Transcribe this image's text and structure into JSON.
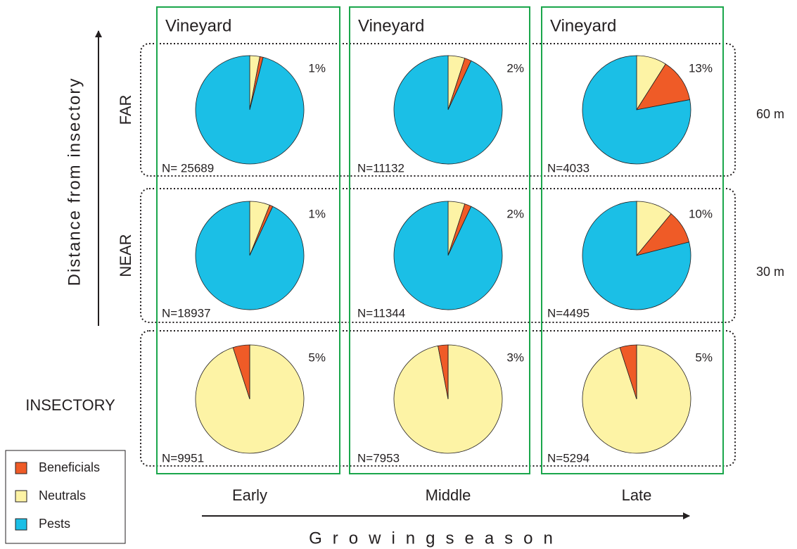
{
  "chart_data": [
    {
      "type": "pie",
      "categories": [
        "Neutrals",
        "Beneficials",
        "Pests"
      ],
      "colors": [
        "#fdf3a5",
        "#ef5b27",
        "#1bbfe6"
      ],
      "values": [
        3,
        1,
        96
      ],
      "value_labels": [
        null,
        "1%",
        null
      ],
      "n_label": "N= 25689"
    },
    {
      "type": "pie",
      "categories": [
        "Neutrals",
        "Beneficials",
        "Pests"
      ],
      "colors": [
        "#fdf3a5",
        "#ef5b27",
        "#1bbfe6"
      ],
      "values": [
        5,
        2,
        93
      ],
      "value_labels": [
        null,
        "2%",
        null
      ],
      "n_label": "N=11132"
    },
    {
      "type": "pie",
      "categories": [
        "Neutrals",
        "Beneficials",
        "Pests"
      ],
      "colors": [
        "#fdf3a5",
        "#ef5b27",
        "#1bbfe6"
      ],
      "values": [
        9,
        13,
        78
      ],
      "value_labels": [
        null,
        "13%",
        null
      ],
      "n_label": "N=4033"
    },
    {
      "type": "pie",
      "categories": [
        "Neutrals",
        "Beneficials",
        "Pests"
      ],
      "colors": [
        "#fdf3a5",
        "#ef5b27",
        "#1bbfe6"
      ],
      "values": [
        6,
        1,
        93
      ],
      "value_labels": [
        null,
        "1%",
        null
      ],
      "n_label": "N=18937"
    },
    {
      "type": "pie",
      "categories": [
        "Neutrals",
        "Beneficials",
        "Pests"
      ],
      "colors": [
        "#fdf3a5",
        "#ef5b27",
        "#1bbfe6"
      ],
      "values": [
        5,
        2,
        93
      ],
      "value_labels": [
        null,
        "2%",
        null
      ],
      "n_label": "N=11344"
    },
    {
      "type": "pie",
      "categories": [
        "Neutrals",
        "Beneficials",
        "Pests"
      ],
      "colors": [
        "#fdf3a5",
        "#ef5b27",
        "#1bbfe6"
      ],
      "values": [
        11,
        10,
        79
      ],
      "value_labels": [
        null,
        "10%",
        null
      ],
      "n_label": "N=4495"
    },
    {
      "type": "pie",
      "categories": [
        "Neutrals",
        "Beneficials",
        "Pests"
      ],
      "colors": [
        "#fdf3a5",
        "#ef5b27",
        "#1bbfe6"
      ],
      "values": [
        95,
        5,
        0
      ],
      "value_labels": [
        null,
        "5%",
        null
      ],
      "n_label": "N=9951"
    },
    {
      "type": "pie",
      "categories": [
        "Neutrals",
        "Beneficials",
        "Pests"
      ],
      "colors": [
        "#fdf3a5",
        "#ef5b27",
        "#1bbfe6"
      ],
      "values": [
        97,
        3,
        0
      ],
      "value_labels": [
        null,
        "3%",
        null
      ],
      "n_label": "N=7953"
    },
    {
      "type": "pie",
      "categories": [
        "Neutrals",
        "Beneficials",
        "Pests"
      ],
      "colors": [
        "#fdf3a5",
        "#ef5b27",
        "#1bbfe6"
      ],
      "values": [
        95,
        5,
        0
      ],
      "value_labels": [
        null,
        "5%",
        null
      ],
      "n_label": "N=5294"
    }
  ],
  "figure": {
    "column_titles": [
      "Vineyard",
      "Vineyard",
      "Vineyard"
    ],
    "row_labels": [
      "FAR",
      "NEAR",
      "INSECTORY"
    ],
    "distances": [
      "60 m",
      "30 m"
    ],
    "y_axis_title": "Distance from insectory",
    "seasons": [
      "Early",
      "Middle",
      "Late"
    ],
    "x_axis_title": "Growingseason"
  }
}
